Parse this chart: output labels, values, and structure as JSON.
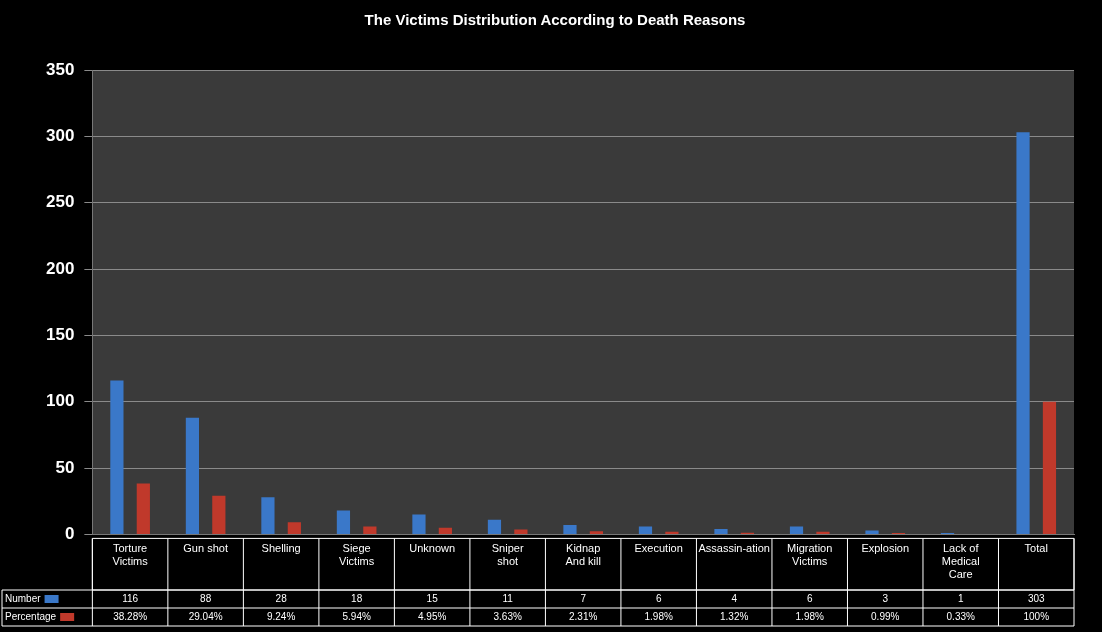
{
  "chart_data": {
    "type": "bar",
    "title": "The Victims Distribution According to Death Reasons",
    "categories": [
      "Torture Victims",
      "Gun shot",
      "Shelling",
      "Siege Victims",
      "Unknown",
      "Sniper shot",
      "Kidnap And kill",
      "Execution",
      "Assassin-ation",
      "Migration Victims",
      "Explosion",
      "Lack of Medical Care",
      "Total"
    ],
    "series": [
      {
        "name": "Number",
        "color": "#3a78c9",
        "values": [
          116,
          88,
          28,
          18,
          15,
          11,
          7,
          6,
          4,
          6,
          3,
          1,
          303
        ],
        "value_labels": [
          "116",
          "88",
          "28",
          "18",
          "15",
          "11",
          "7",
          "6",
          "4",
          "6",
          "3",
          "1",
          "303"
        ]
      },
      {
        "name": "Percentage",
        "color": "#c0392b",
        "values": [
          38.28,
          29.04,
          9.24,
          5.94,
          4.95,
          3.63,
          2.31,
          1.98,
          1.32,
          1.98,
          0.99,
          0.33,
          100
        ],
        "value_labels": [
          "38.28%",
          "29.04%",
          "9.24%",
          "5.94%",
          "4.95%",
          "3.63%",
          "2.31%",
          "1.98%",
          "1.32%",
          "1.98%",
          "0.99%",
          "0.33%",
          "100%"
        ]
      }
    ],
    "ylim": [
      0,
      350
    ],
    "yticks": [
      0,
      50,
      100,
      150,
      200,
      250,
      300,
      350
    ],
    "grid": "y",
    "legend": "bottom"
  }
}
